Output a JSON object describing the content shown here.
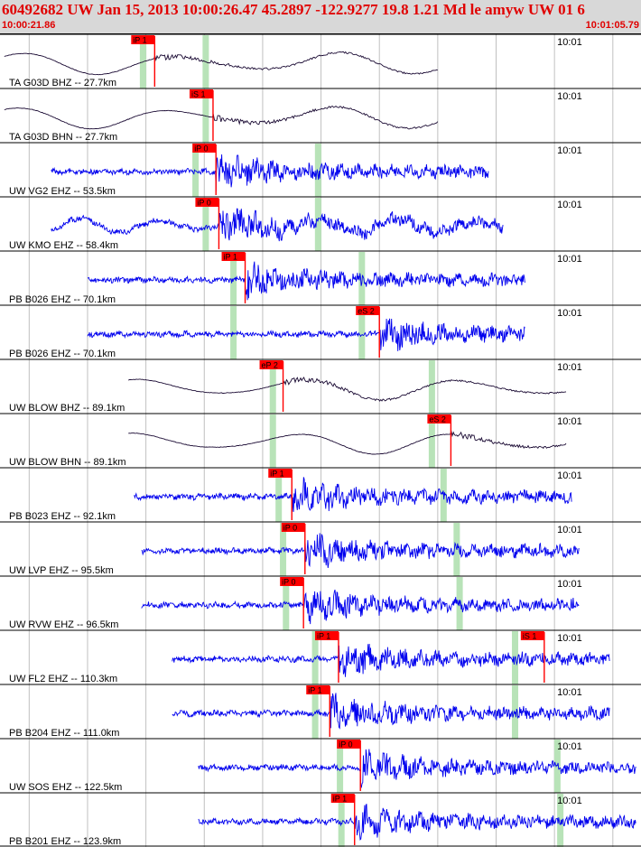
{
  "header": {
    "title": "60492682 UW Jan 15, 2013 10:00:26.47    45.2897 -122.9277 19.8 1.21 Md le amyw UW 01    6",
    "start_time": "10:00:21.86",
    "end_time": "10:01:05.79"
  },
  "colors": {
    "background": "#ffffff",
    "header_bg": "#d8d8d8",
    "header_text": "#e00000",
    "trace_vertical": "#0000ee",
    "trace_horizontal": "#1a0a33",
    "pick_box": "#ff0000",
    "pick_window": "#b8e3b8",
    "grid": "#c0c0c0"
  },
  "chart_data": {
    "type": "line",
    "x_unit": "seconds after 10:00:21.86",
    "x_range": [
      0,
      43.93
    ],
    "time_marks": [
      {
        "t": 38.0,
        "label": "10:01"
      }
    ],
    "grid": "vertical",
    "y_unit": "normalized amplitude",
    "traces": [
      {
        "label": "TA G03D BHZ -- 27.7km",
        "component": "horizontal-color",
        "start": 0.3,
        "end": 30.0,
        "picks": [
          {
            "label": "iP 1",
            "t": 10.6
          }
        ],
        "windows": [
          9.8,
          14.1
        ],
        "wave": "long-period"
      },
      {
        "label": "TA G03D BHN -- 27.7km",
        "component": "horizontal-color",
        "start": 0.3,
        "end": 30.0,
        "picks": [
          {
            "label": "iS 1",
            "t": 14.6
          }
        ],
        "windows": [
          14.1
        ],
        "wave": "long-period"
      },
      {
        "label": "UW VG2 EHZ -- 53.5km",
        "component": "vertical",
        "start": 3.5,
        "end": 33.5,
        "picks": [
          {
            "label": "iP 0",
            "t": 14.8
          }
        ],
        "windows": [
          13.4,
          21.8
        ],
        "wave": "short-period"
      },
      {
        "label": "UW KMO EHZ -- 58.4km",
        "component": "vertical",
        "start": 3.5,
        "end": 34.5,
        "picks": [
          {
            "label": "iP 0",
            "t": 15.0
          }
        ],
        "windows": [
          14.1,
          21.8
        ],
        "wave": "mixed"
      },
      {
        "label": "PB B026 EHZ -- 70.1km",
        "component": "vertical",
        "start": 6.0,
        "end": 36.0,
        "picks": [
          {
            "label": "iP 1",
            "t": 16.8
          }
        ],
        "windows": [
          16.0,
          24.8
        ],
        "wave": "short-period"
      },
      {
        "label": "PB B026 EHZ -- 70.1km",
        "component": "vertical",
        "start": 6.0,
        "end": 36.0,
        "picks": [
          {
            "label": "eS 2",
            "t": 26.0
          }
        ],
        "windows": [
          16.0,
          24.8
        ],
        "wave": "short-period"
      },
      {
        "label": "UW BLOW BHZ -- 89.1km",
        "component": "horizontal-color",
        "start": 8.8,
        "end": 38.8,
        "picks": [
          {
            "label": "eP 2",
            "t": 19.4
          }
        ],
        "windows": [
          18.7,
          29.6
        ],
        "wave": "long-period"
      },
      {
        "label": "UW BLOW BHN -- 89.1km",
        "component": "horizontal-color",
        "start": 8.8,
        "end": 38.8,
        "picks": [
          {
            "label": "eS 2",
            "t": 30.9
          }
        ],
        "windows": [
          18.7,
          29.6
        ],
        "wave": "long-period"
      },
      {
        "label": "PB B023 EHZ -- 92.1km",
        "component": "vertical",
        "start": 9.2,
        "end": 39.2,
        "picks": [
          {
            "label": "iP 1",
            "t": 20.0
          }
        ],
        "windows": [
          19.1,
          30.4
        ],
        "wave": "short-period"
      },
      {
        "label": "UW LVP EHZ -- 95.5km",
        "component": "vertical",
        "start": 9.7,
        "end": 39.7,
        "picks": [
          {
            "label": "iP 0",
            "t": 20.9
          }
        ],
        "windows": [
          19.4,
          31.3
        ],
        "wave": "short-period"
      },
      {
        "label": "UW RVW EHZ -- 96.5km",
        "component": "vertical",
        "start": 9.7,
        "end": 39.7,
        "picks": [
          {
            "label": "iP 0",
            "t": 20.8
          }
        ],
        "windows": [
          19.6,
          31.5
        ],
        "wave": "short-period"
      },
      {
        "label": "UW FL2 EHZ -- 110.3km",
        "component": "vertical",
        "start": 11.8,
        "end": 41.8,
        "picks": [
          {
            "label": "iP 1",
            "t": 23.2
          },
          {
            "label": "iS 1",
            "t": 37.3
          }
        ],
        "windows": [
          21.6,
          35.3
        ],
        "wave": "short-period"
      },
      {
        "label": "PB B204 EHZ -- 111.0km",
        "component": "vertical",
        "start": 11.8,
        "end": 41.8,
        "picks": [
          {
            "label": "iP 1",
            "t": 22.6
          }
        ],
        "windows": [
          21.6,
          35.3
        ],
        "wave": "short-period"
      },
      {
        "label": "UW SOS EHZ -- 122.5km",
        "component": "vertical",
        "start": 13.6,
        "end": 43.6,
        "picks": [
          {
            "label": "iP 0",
            "t": 24.7
          }
        ],
        "windows": [
          23.3,
          38.2
        ],
        "wave": "short-period"
      },
      {
        "label": "PB B201 EHZ -- 123.9km",
        "component": "vertical",
        "start": 13.6,
        "end": 43.6,
        "picks": [
          {
            "label": "iP 1",
            "t": 24.3
          }
        ],
        "windows": [
          23.4,
          38.4
        ],
        "wave": "short-period"
      }
    ]
  }
}
